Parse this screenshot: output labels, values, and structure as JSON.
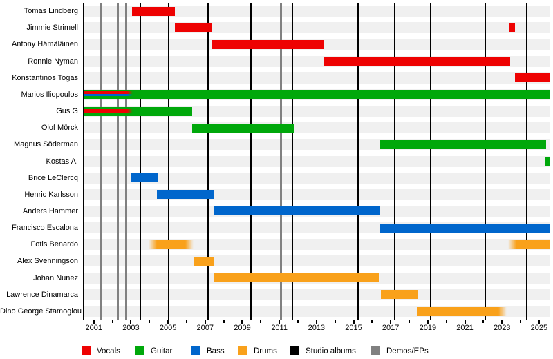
{
  "chart_data": {
    "type": "bar",
    "subtype": "band-members-gantt-timeline",
    "title": "",
    "x_axis": {
      "min": 2000.45,
      "max": 2025.6,
      "tick_every_years": 1,
      "labeled_tick_years": [
        2001,
        2003,
        2005,
        2007,
        2009,
        2011,
        2013,
        2015,
        2017,
        2019,
        2021,
        2023,
        2025
      ],
      "all_tick_years": [
        2001,
        2002,
        2003,
        2004,
        2005,
        2006,
        2007,
        2008,
        2009,
        2010,
        2011,
        2012,
        2013,
        2014,
        2015,
        2016,
        2017,
        2018,
        2019,
        2020,
        2021,
        2022,
        2023,
        2024,
        2025
      ]
    },
    "colors": {
      "vocals": "#ee0202",
      "guitar": "#00a80b",
      "bass": "#0066cc",
      "drums": "#f9a11b",
      "studio_albums": "#000000",
      "demos_eps": "#808080",
      "row_band": "#f0f0f0"
    },
    "members": [
      {
        "name": "Tomas Lindberg",
        "bars": [
          {
            "role": "vocals",
            "start": 2003.05,
            "end": 2005.37
          }
        ]
      },
      {
        "name": "Jimmie Strimell",
        "bars": [
          {
            "role": "vocals",
            "start": 2005.37,
            "end": 2007.38
          },
          {
            "role": "vocals",
            "start": 2023.4,
            "end": 2023.7
          }
        ]
      },
      {
        "name": "Antony Hämäläinen",
        "bars": [
          {
            "role": "vocals",
            "start": 2007.38,
            "end": 2013.38
          }
        ]
      },
      {
        "name": "Ronnie Nyman",
        "bars": [
          {
            "role": "vocals",
            "start": 2013.38,
            "end": 2023.44
          }
        ]
      },
      {
        "name": "Konstantinos Togas",
        "bars": [
          {
            "role": "vocals",
            "start": 2023.7,
            "end": 2025.6
          }
        ]
      },
      {
        "name": "Marios Iliopoulos",
        "bars": [
          {
            "role": "guitar",
            "start": 2000.45,
            "end": 2025.6
          },
          {
            "role": "vocals",
            "start": 2000.45,
            "end": 2003.1,
            "stripe": "upper",
            "fade_right": true
          },
          {
            "role": "bass",
            "start": 2000.45,
            "end": 2003.1,
            "stripe": "lower",
            "fade_right": true
          }
        ]
      },
      {
        "name": "Gus G",
        "bars": [
          {
            "role": "guitar",
            "start": 2000.45,
            "end": 2006.3
          },
          {
            "role": "vocals",
            "start": 2000.45,
            "end": 2003.1,
            "stripe": "middle",
            "fade_right": true
          }
        ]
      },
      {
        "name": "Olof Mörck",
        "bars": [
          {
            "role": "guitar",
            "start": 2006.3,
            "end": 2011.78
          }
        ]
      },
      {
        "name": "Magnus Söderman",
        "bars": [
          {
            "role": "guitar",
            "start": 2016.43,
            "end": 2025.38
          }
        ]
      },
      {
        "name": "Kostas A.",
        "bars": [
          {
            "role": "guitar",
            "start": 2025.3,
            "end": 2025.6
          }
        ]
      },
      {
        "name": "Brice LeClercq",
        "bars": [
          {
            "role": "bass",
            "start": 2003.02,
            "end": 2004.44
          }
        ]
      },
      {
        "name": "Henric Karlsson",
        "bars": [
          {
            "role": "bass",
            "start": 2004.4,
            "end": 2007.49
          }
        ]
      },
      {
        "name": "Anders Hammer",
        "bars": [
          {
            "role": "bass",
            "start": 2007.45,
            "end": 2016.43
          }
        ]
      },
      {
        "name": "Francisco Escalona",
        "bars": [
          {
            "role": "bass",
            "start": 2016.43,
            "end": 2025.6
          }
        ]
      },
      {
        "name": "Fotis Benardo",
        "bars": [
          {
            "role": "drums",
            "start": 2003.95,
            "end": 2006.37,
            "fade_left": true,
            "fade_right": true
          },
          {
            "role": "drums",
            "start": 2023.33,
            "end": 2025.6,
            "fade_left": true
          }
        ]
      },
      {
        "name": "Alex Svenningson",
        "bars": [
          {
            "role": "drums",
            "start": 2006.41,
            "end": 2007.49
          }
        ]
      },
      {
        "name": "Johan Nunez",
        "bars": [
          {
            "role": "drums",
            "start": 2007.45,
            "end": 2016.4
          }
        ]
      },
      {
        "name": "Lawrence Dinamarca",
        "bars": [
          {
            "role": "drums",
            "start": 2016.47,
            "end": 2018.48
          }
        ]
      },
      {
        "name": "Dino George Stamoglou",
        "bars": [
          {
            "role": "drums",
            "start": 2018.41,
            "end": 2023.25,
            "fade_right": true
          }
        ]
      }
    ],
    "events": {
      "studio_albums": [
        2003.5,
        2005.05,
        2007.15,
        2009.45,
        2011.7,
        2015.25,
        2017.2,
        2019.15,
        2022.1,
        2024.35
      ],
      "demos_eps": [
        2001.4,
        2002.3,
        2002.75,
        2011.1
      ]
    },
    "legend": [
      {
        "label": "Vocals",
        "role": "vocals"
      },
      {
        "label": "Guitar",
        "role": "guitar"
      },
      {
        "label": "Bass",
        "role": "bass"
      },
      {
        "label": "Drums",
        "role": "drums"
      },
      {
        "label": "Studio albums",
        "role": "studio_albums"
      },
      {
        "label": "Demos/EPs",
        "role": "demos_eps"
      }
    ]
  }
}
